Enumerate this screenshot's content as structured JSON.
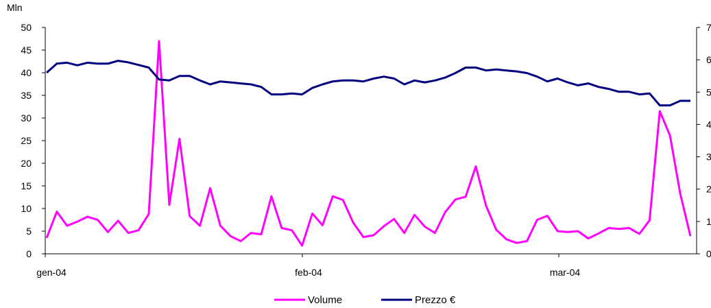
{
  "chart_data": {
    "type": "line",
    "title": "",
    "left_axis": {
      "unit_label": "Mln",
      "ylim": [
        0,
        50
      ],
      "ticks": [
        "0",
        "5",
        "10",
        "15",
        "20",
        "25",
        "30",
        "35",
        "40",
        "45",
        "50"
      ]
    },
    "right_axis": {
      "ylim": [
        0,
        7
      ],
      "ticks": [
        "0",
        "1",
        "2",
        "3",
        "4",
        "5",
        "6",
        "7"
      ]
    },
    "x_tick_labels": [
      "gen-04",
      "feb-04",
      "mar-04"
    ],
    "grid": false,
    "legend_position": "bottom",
    "series": [
      {
        "name": "Volume",
        "axis": "left",
        "color": "#ff00ff",
        "values": [
          3.5,
          9.3,
          6.2,
          7.1,
          8.2,
          7.5,
          4.8,
          7.3,
          4.6,
          5.2,
          8.8,
          47,
          10.8,
          25.4,
          8.3,
          6.2,
          14.5,
          6.2,
          3.9,
          2.8,
          4.6,
          4.3,
          12.7,
          5.7,
          5.2,
          1.8,
          8.9,
          6.3,
          12.7,
          11.9,
          6.9,
          3.7,
          4.1,
          6.1,
          7.7,
          4.6,
          8.6,
          6.0,
          4.6,
          9.2,
          12.0,
          12.6,
          19.3,
          10.6,
          5.3,
          3.2,
          2.4,
          2.8,
          7.5,
          8.4,
          5.0,
          4.8,
          5.0,
          3.4,
          4.5,
          5.7,
          5.5,
          5.7,
          4.4,
          7.4,
          31.5,
          26.1,
          13.3,
          3.9
        ]
      },
      {
        "name": "Prezzo €",
        "axis": "right",
        "color": "#000080",
        "values": [
          5.6,
          5.88,
          5.91,
          5.83,
          5.91,
          5.88,
          5.88,
          5.97,
          5.92,
          5.84,
          5.76,
          5.39,
          5.36,
          5.5,
          5.5,
          5.36,
          5.24,
          5.33,
          5.3,
          5.27,
          5.24,
          5.16,
          4.93,
          4.93,
          4.96,
          4.93,
          5.13,
          5.24,
          5.33,
          5.36,
          5.36,
          5.33,
          5.42,
          5.48,
          5.42,
          5.24,
          5.36,
          5.3,
          5.36,
          5.45,
          5.59,
          5.76,
          5.76,
          5.67,
          5.7,
          5.67,
          5.64,
          5.59,
          5.48,
          5.33,
          5.42,
          5.3,
          5.21,
          5.27,
          5.16,
          5.1,
          5.01,
          5.01,
          4.93,
          4.96,
          4.59,
          4.59,
          4.73,
          4.73
        ]
      }
    ]
  }
}
